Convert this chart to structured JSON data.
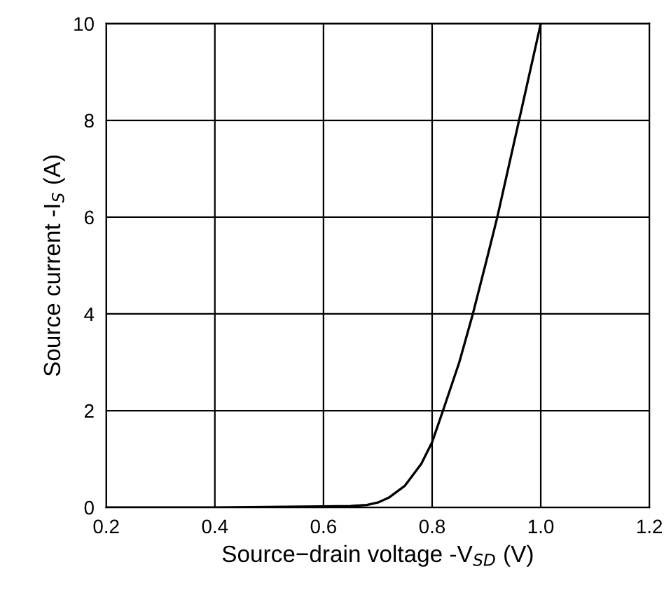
{
  "chart_data": {
    "type": "line",
    "xlabel": "Source−drain voltage -V$_{SD}$ (V)",
    "ylabel": "Source current -I$_{S}$ (A)",
    "series": [
      {
        "color": "#000000",
        "x": [
          0.2,
          0.3,
          0.4,
          0.5,
          0.6,
          0.65,
          0.68,
          0.7,
          0.72,
          0.75,
          0.78,
          0.8,
          0.82,
          0.85,
          0.875,
          0.9,
          0.92,
          0.94,
          0.96,
          0.98,
          1.0
        ],
        "values": [
          0,
          0,
          0,
          0.01,
          0.02,
          0.03,
          0.05,
          0.1,
          0.2,
          0.45,
          0.9,
          1.35,
          2.0,
          3.0,
          4.0,
          5.1,
          6.0,
          7.0,
          8.0,
          9.0,
          10.0
        ]
      }
    ],
    "xlim": [
      0.2,
      1.2
    ],
    "ylim": [
      0,
      10
    ],
    "xticks": [
      {
        "value": 0.2,
        "label": "0.2"
      },
      {
        "value": 0.4,
        "label": "0.4"
      },
      {
        "value": 0.6,
        "label": "0.6"
      },
      {
        "value": 0.8,
        "label": "0.8"
      },
      {
        "value": 1.0,
        "label": "1.0"
      },
      {
        "value": 1.2,
        "label": "1.2"
      }
    ],
    "yticks": [
      0,
      2,
      4,
      6,
      8,
      10
    ],
    "grid": true,
    "line_style": "solid",
    "marker": "none"
  }
}
